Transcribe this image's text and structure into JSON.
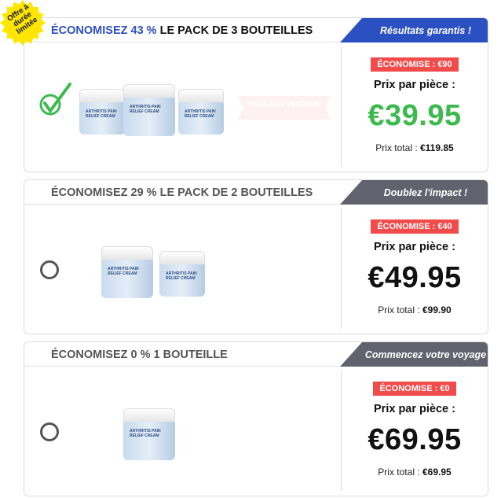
{
  "promo_burst": "Offre à durée limitée",
  "best_seller": "MEILLEUR VENDEUR",
  "jar_label": "ARTHRITIS PAIN RELIEF CREAM",
  "packs": [
    {
      "title_highlight": "ÉCONOMISEZ 43 %",
      "title_rest": " LE PACK DE 3 BOUTEILLES",
      "ribbon": "Résultats garantis !",
      "ribbon_color": "#2b50c2",
      "badge": "ÉCONOMISE : €90",
      "per_piece_label": "Prix par pièce :",
      "price": "€39.95",
      "price_color": "#3dba4e",
      "total_label": "Prix total : ",
      "total": "€119.85",
      "selected": true,
      "jars": 3
    },
    {
      "title_highlight": "",
      "title_rest": "ÉCONOMISEZ 29 % LE PACK DE 2 BOUTEILLES",
      "ribbon": "Doublez l'impact !",
      "ribbon_color": "#62626e",
      "badge": "ÉCONOMISE : €40",
      "per_piece_label": "Prix par pièce :",
      "price": "€49.95",
      "price_color": "#111111",
      "total_label": "Prix total : ",
      "total": "€99.90",
      "selected": false,
      "jars": 2
    },
    {
      "title_highlight": "",
      "title_rest": "ÉCONOMISEZ 0 % 1 BOUTEILLE",
      "ribbon": "Commencez votre voyage",
      "ribbon_color": "#62626e",
      "badge": "ÉCONOMISE : €0",
      "per_piece_label": "Prix par pièce :",
      "price": "€69.95",
      "price_color": "#111111",
      "total_label": "Prix total : ",
      "total": "€69.95",
      "selected": false,
      "jars": 1
    }
  ]
}
